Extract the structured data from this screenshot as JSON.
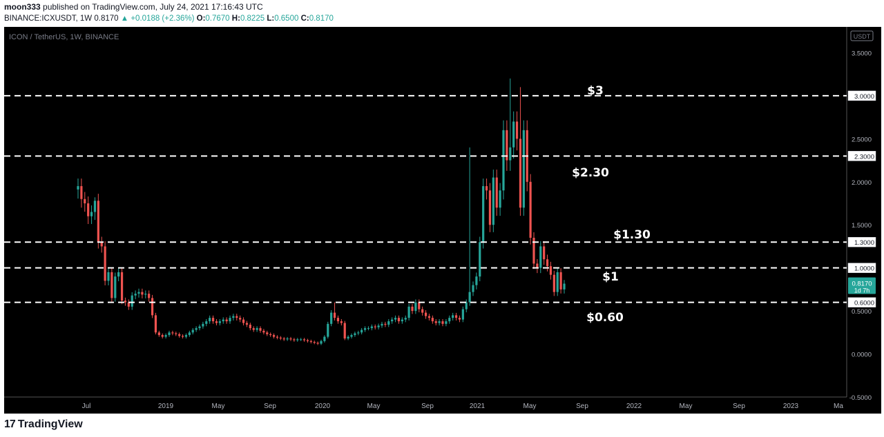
{
  "header": {
    "author": "moon333",
    "published": "published on TradingView.com, July 24, 2021 17:16:43 UTC",
    "symbol": "BINANCE:ICXUSDT, 1W",
    "last": "0.8170",
    "change": "▲ +0.0188 (+2.36%)",
    "ohlc": [
      {
        "k": "O:",
        "v": "0.7670"
      },
      {
        "k": "H:",
        "v": "0.8225"
      },
      {
        "k": "L:",
        "v": "0.6500"
      },
      {
        "k": "C:",
        "v": "0.8170"
      }
    ]
  },
  "footer": {
    "brand": "TradingView",
    "logo": "17"
  },
  "chart_data": {
    "type": "candlestick",
    "title": "ICON / TetherUS, 1W, BINANCE",
    "currency_badge": "USDT",
    "ylim": [
      -0.5,
      3.8
    ],
    "y_ticks": [
      "3.5000",
      "3.0000",
      "2.5000",
      "2.0000",
      "1.5000",
      "1.0000",
      "0.5000",
      "0.0000",
      "-0.5000"
    ],
    "x_ticks": [
      "Jul",
      "2019",
      "May",
      "Sep",
      "2020",
      "May",
      "Sep",
      "2021",
      "May",
      "Sep",
      "2022",
      "May",
      "Sep",
      "2023",
      "Ma"
    ],
    "price_label": {
      "value": "0.8170",
      "sub": "1d 7h",
      "y": 0.817
    },
    "levels": [
      {
        "y": 3.0,
        "badge": "3.0000",
        "annotation": "$3"
      },
      {
        "y": 2.3,
        "badge": "2.3000",
        "annotation": "$2.30"
      },
      {
        "y": 1.3,
        "badge": "1.3000",
        "annotation": "$1.30"
      },
      {
        "y": 1.0,
        "badge": "1.0000",
        "annotation": "$1"
      },
      {
        "y": 0.6,
        "badge": "0.6000",
        "annotation": "$0.60"
      }
    ],
    "closes": [
      1.95,
      1.8,
      1.75,
      1.6,
      1.65,
      1.78,
      1.3,
      1.25,
      0.85,
      0.95,
      0.65,
      0.9,
      0.95,
      0.62,
      0.6,
      0.55,
      0.68,
      0.7,
      0.72,
      0.69,
      0.7,
      0.65,
      0.45,
      0.25,
      0.22,
      0.2,
      0.22,
      0.25,
      0.24,
      0.23,
      0.21,
      0.2,
      0.22,
      0.25,
      0.28,
      0.3,
      0.32,
      0.35,
      0.38,
      0.42,
      0.38,
      0.36,
      0.38,
      0.4,
      0.38,
      0.42,
      0.44,
      0.42,
      0.4,
      0.36,
      0.34,
      0.3,
      0.28,
      0.3,
      0.27,
      0.25,
      0.23,
      0.22,
      0.2,
      0.19,
      0.18,
      0.17,
      0.18,
      0.17,
      0.16,
      0.17,
      0.17,
      0.16,
      0.15,
      0.14,
      0.13,
      0.12,
      0.15,
      0.2,
      0.35,
      0.48,
      0.42,
      0.38,
      0.36,
      0.18,
      0.2,
      0.22,
      0.24,
      0.25,
      0.28,
      0.3,
      0.3,
      0.32,
      0.31,
      0.33,
      0.35,
      0.34,
      0.38,
      0.4,
      0.42,
      0.38,
      0.4,
      0.42,
      0.55,
      0.5,
      0.6,
      0.52,
      0.48,
      0.44,
      0.42,
      0.38,
      0.36,
      0.38,
      0.35,
      0.38,
      0.42,
      0.45,
      0.42,
      0.4,
      0.52,
      0.6,
      0.72,
      0.8,
      0.9,
      1.3,
      1.95,
      1.9,
      1.5,
      2.05,
      1.7,
      1.9,
      2.6,
      2.25,
      2.4,
      2.7,
      2.5,
      1.7,
      2.6,
      2.0,
      1.35,
      1.05,
      1.0,
      1.25,
      1.1,
      1.02,
      0.92,
      0.72,
      0.95,
      0.75,
      0.817
    ],
    "highs": {
      "128": 3.2,
      "131": 3.1,
      "116": 2.4,
      "5": 1.82,
      "76": 0.6
    }
  }
}
